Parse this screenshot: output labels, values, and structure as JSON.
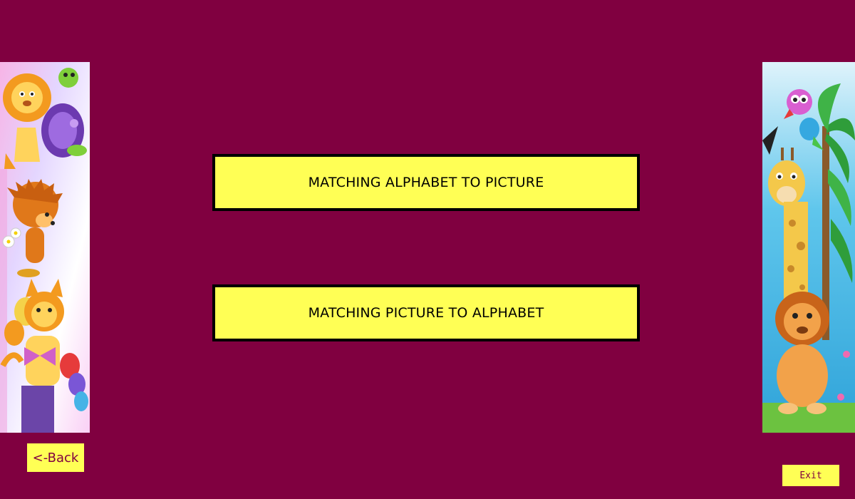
{
  "menu": {
    "options": [
      {
        "label": "MATCHING ALPHABET TO PICTURE"
      },
      {
        "label": "MATCHING PICTURE TO ALPHABET"
      }
    ]
  },
  "navigation": {
    "back_label": "<-Back",
    "exit_label": "Exit"
  },
  "decorations": {
    "left_panel_icons": [
      "lion-icon",
      "turtle-icon",
      "hedgehog-icon",
      "cat-icon",
      "balloon-icon"
    ],
    "right_panel_icons": [
      "parrot-icon",
      "giraffe-icon",
      "palm-tree-icon",
      "lion-icon"
    ]
  },
  "colors": {
    "background": "#800040",
    "button_fill": "#ffff55",
    "button_border": "#000000",
    "nav_text": "#800040"
  }
}
